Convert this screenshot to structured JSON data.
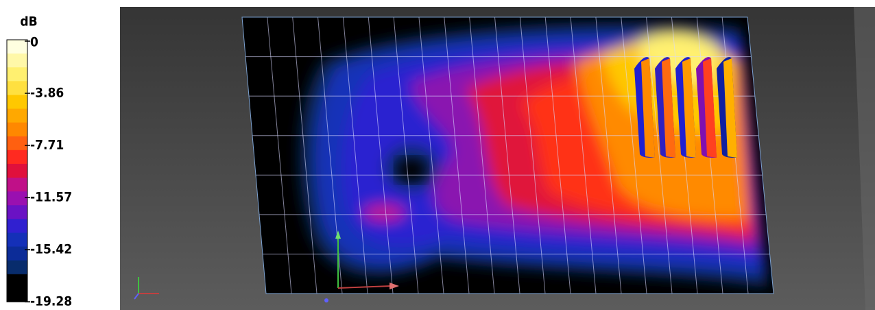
{
  "legend": {
    "title": "dB",
    "labels": [
      "0",
      "-3.86",
      "-7.71",
      "-11.57",
      "-15.42",
      "-19.28"
    ]
  }
}
